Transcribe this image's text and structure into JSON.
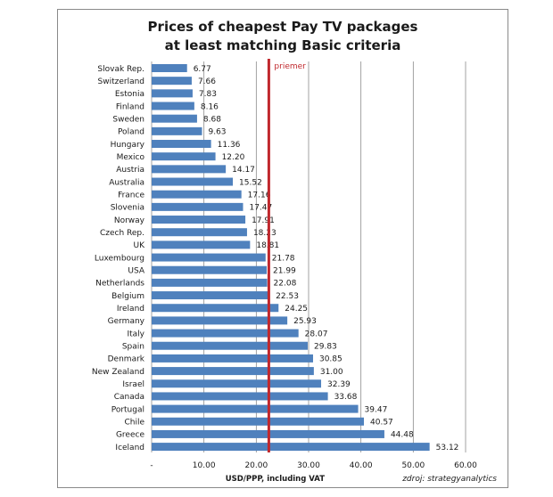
{
  "chart_data": {
    "type": "bar",
    "orientation": "horizontal",
    "title_lines": [
      "Prices of cheapest Pay TV packages",
      "at least matching Basic criteria"
    ],
    "categories": [
      "Slovak Rep.",
      "Switzerland",
      "Estonia",
      "Finland",
      "Sweden",
      "Poland",
      "Hungary",
      "Mexico",
      "Austria",
      "Australia",
      "France",
      "Slovenia",
      "Norway",
      "Czech Rep.",
      "UK",
      "Luxembourg",
      "USA",
      "Netherlands",
      "Belgium",
      "Ireland",
      "Germany",
      "Italy",
      "Spain",
      "Denmark",
      "New Zealand",
      "Israel",
      "Canada",
      "Portugal",
      "Chile",
      "Greece",
      "Iceland"
    ],
    "values": [
      6.77,
      7.66,
      7.83,
      8.16,
      8.68,
      9.63,
      11.36,
      12.2,
      14.17,
      15.52,
      17.16,
      17.47,
      17.91,
      18.23,
      18.81,
      21.78,
      21.99,
      22.08,
      22.53,
      24.25,
      25.93,
      28.07,
      29.83,
      30.85,
      31.0,
      32.39,
      33.68,
      39.47,
      40.57,
      44.48,
      53.12
    ],
    "value_labels": [
      "6.77",
      "7.66",
      "7.83",
      "8.16",
      "8.68",
      "9.63",
      "11.36",
      "12.20",
      "14.17",
      "15.52",
      "17.16",
      "17.47",
      "17.91",
      "18.23",
      "18.81",
      "21.78",
      "21.99",
      "22.08",
      "22.53",
      "24.25",
      "25.93",
      "28.07",
      "29.83",
      "30.85",
      "31.00",
      "32.39",
      "33.68",
      "39.47",
      "40.57",
      "44.48",
      "53.12"
    ],
    "xlabel": "USD/PPP, including VAT",
    "xlim": [
      0,
      60
    ],
    "x_ticks": [
      0,
      10,
      20,
      30,
      40,
      50,
      60
    ],
    "x_tick_labels": [
      "-",
      "10.00",
      "20.00",
      "30.00",
      "40.00",
      "50.00",
      "60.00"
    ],
    "grid": true,
    "reference_line": {
      "value": 22.4,
      "label": "priemer",
      "color": "#c0282d"
    },
    "source": "zdroj: strategyanalytics",
    "bar_color": "#4f81bd"
  }
}
